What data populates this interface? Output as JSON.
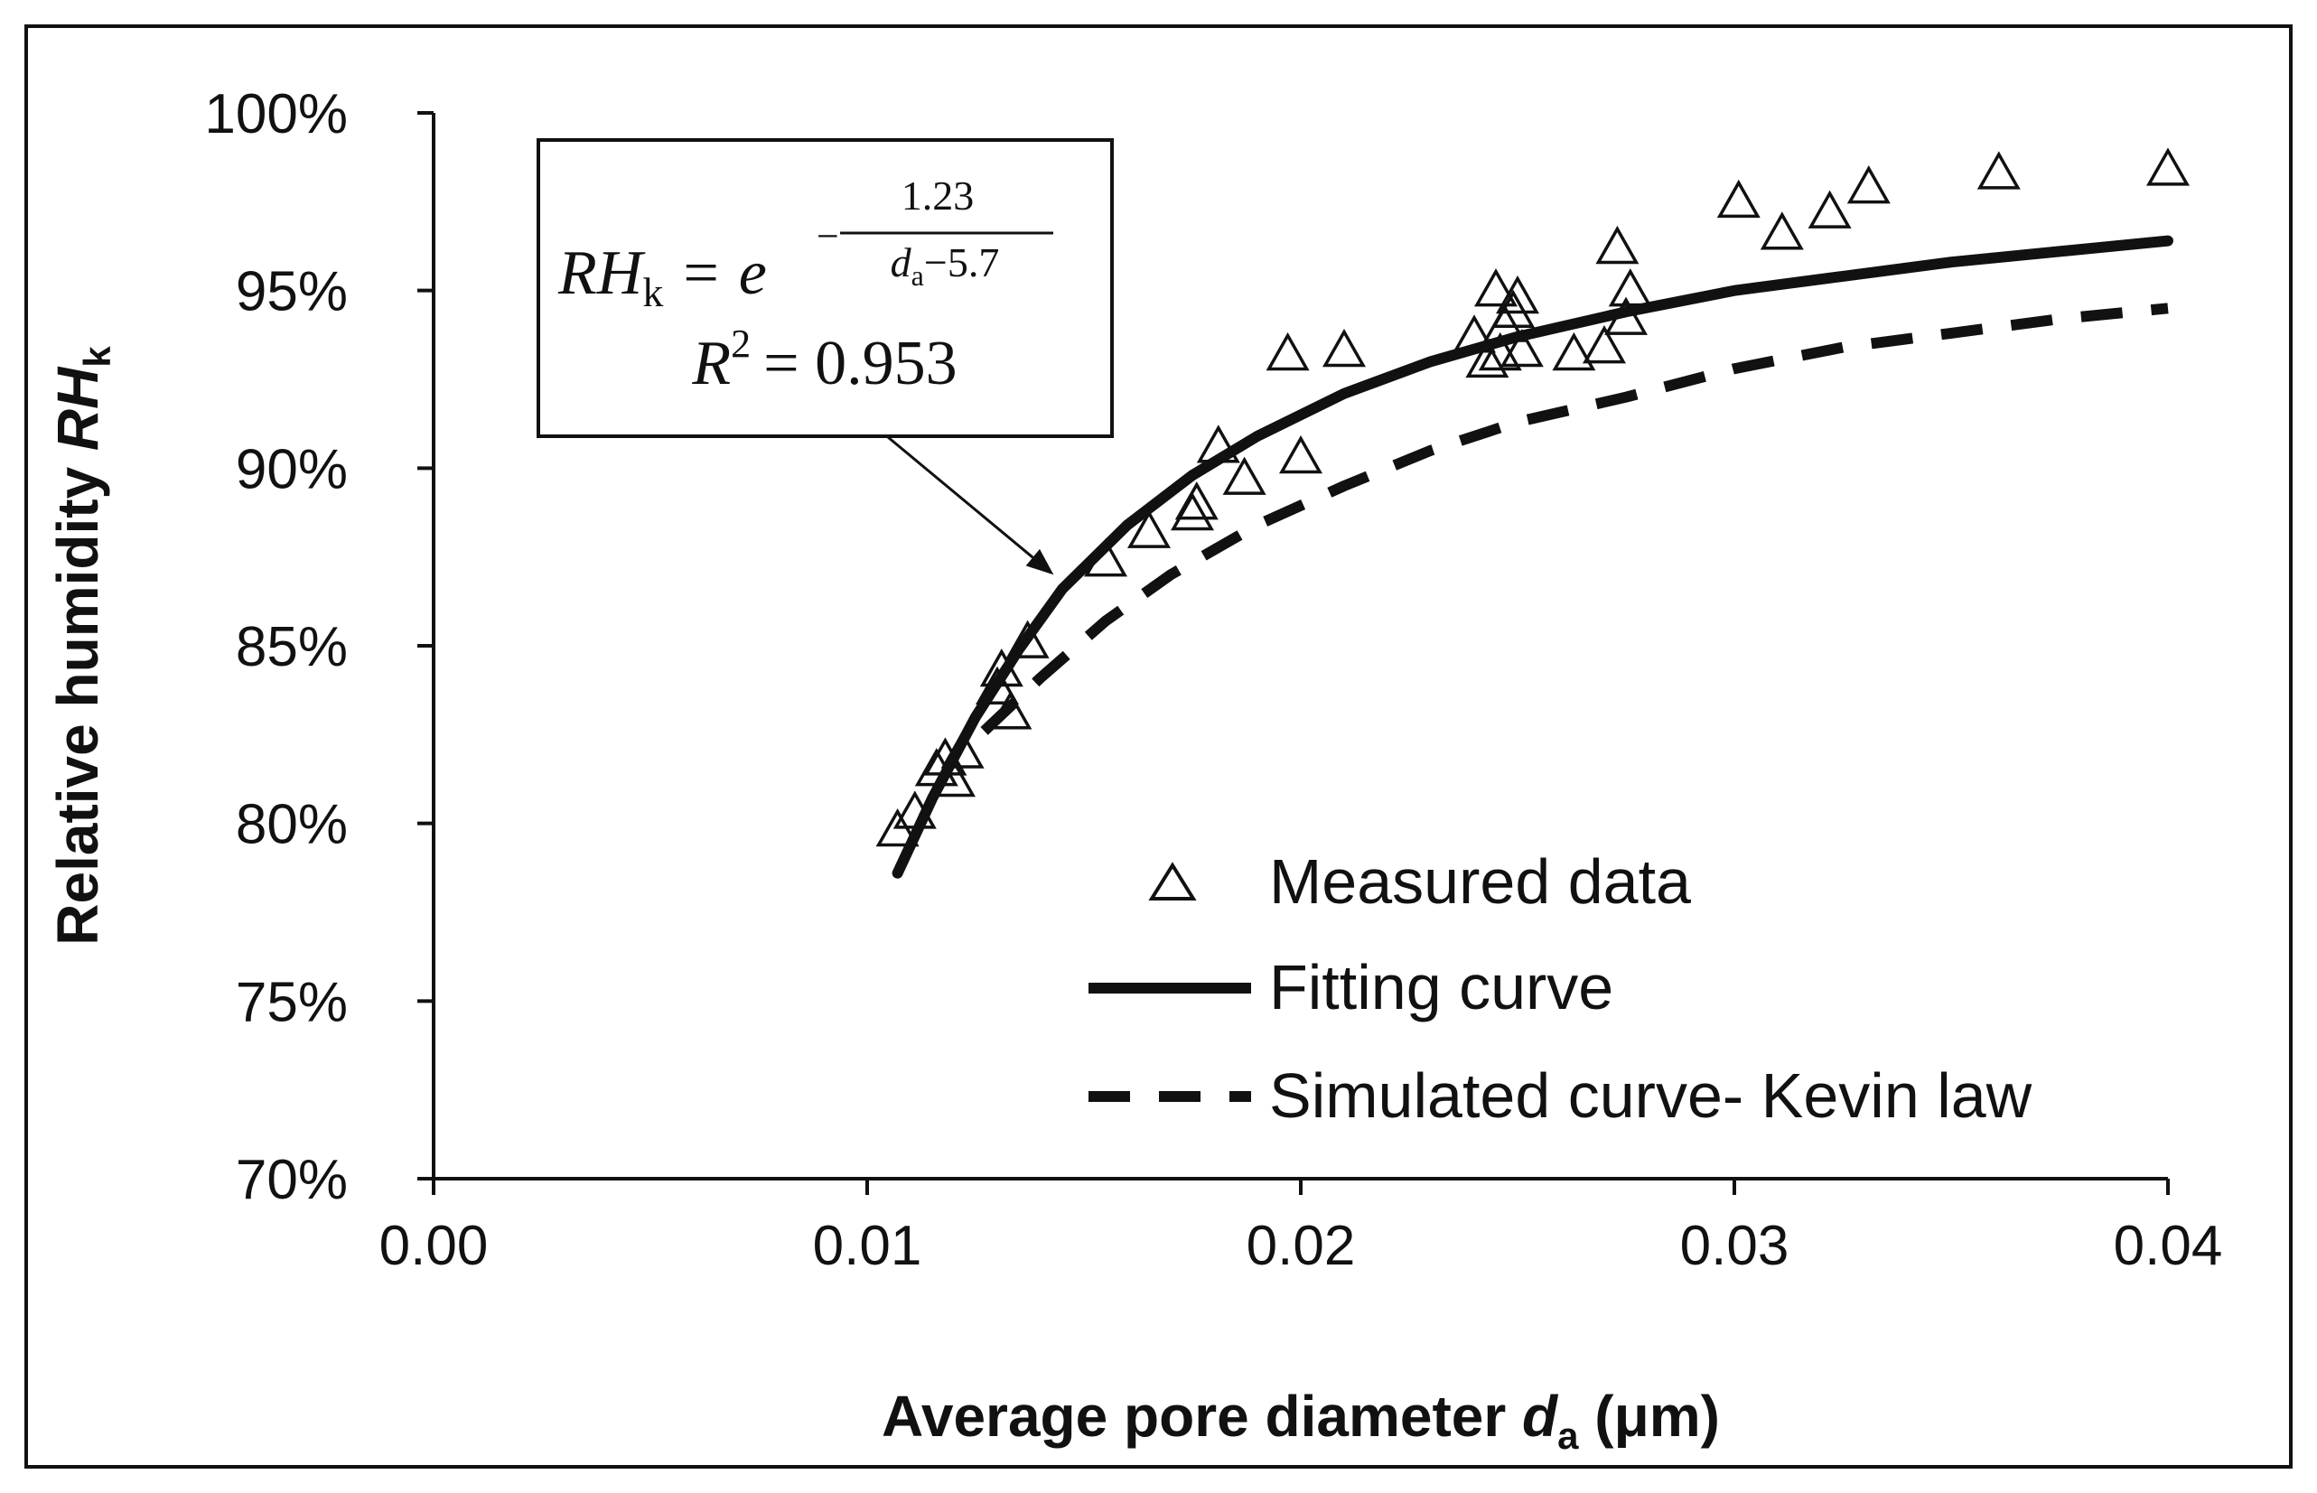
{
  "chart_data": {
    "type": "scatter",
    "xlabel": {
      "main": "Average pore diameter ",
      "var": "d",
      "sub": "a",
      "unit": " (μm)"
    },
    "ylabel": {
      "main": "Relative humidity ",
      "var": "RH",
      "sub": "k"
    },
    "xlim": [
      0,
      0.04
    ],
    "ylim": [
      0.7,
      1.0
    ],
    "xticks": [
      {
        "value": 0.0,
        "label": "0.00"
      },
      {
        "value": 0.01,
        "label": "0.01"
      },
      {
        "value": 0.02,
        "label": "0.02"
      },
      {
        "value": 0.03,
        "label": "0.03"
      },
      {
        "value": 0.04,
        "label": "0.04"
      }
    ],
    "yticks": [
      {
        "value": 0.7,
        "label": "70%"
      },
      {
        "value": 0.75,
        "label": "75%"
      },
      {
        "value": 0.8,
        "label": "80%"
      },
      {
        "value": 0.85,
        "label": "85%"
      },
      {
        "value": 0.9,
        "label": "90%"
      },
      {
        "value": 0.95,
        "label": "95%"
      },
      {
        "value": 1.0,
        "label": "100%"
      }
    ],
    "series": [
      {
        "name": "Measured data",
        "style": "triangle-marker",
        "points": [
          [
            0.0107,
            0.798
          ],
          [
            0.0111,
            0.803
          ],
          [
            0.0116,
            0.815
          ],
          [
            0.0118,
            0.818
          ],
          [
            0.012,
            0.812
          ],
          [
            0.0122,
            0.82
          ],
          [
            0.013,
            0.838
          ],
          [
            0.0131,
            0.843
          ],
          [
            0.0133,
            0.831
          ],
          [
            0.0137,
            0.851
          ],
          [
            0.0155,
            0.874
          ],
          [
            0.0165,
            0.882
          ],
          [
            0.0175,
            0.887
          ],
          [
            0.0176,
            0.89
          ],
          [
            0.0181,
            0.906
          ],
          [
            0.0187,
            0.897
          ],
          [
            0.0197,
            0.932
          ],
          [
            0.02,
            0.903
          ],
          [
            0.021,
            0.933
          ],
          [
            0.024,
            0.937
          ],
          [
            0.0243,
            0.93
          ],
          [
            0.0245,
            0.95
          ],
          [
            0.0246,
            0.932
          ],
          [
            0.0247,
            0.94
          ],
          [
            0.0249,
            0.944
          ],
          [
            0.025,
            0.948
          ],
          [
            0.0251,
            0.933
          ],
          [
            0.0263,
            0.932
          ],
          [
            0.027,
            0.934
          ],
          [
            0.0273,
            0.962
          ],
          [
            0.0275,
            0.942
          ],
          [
            0.0276,
            0.95
          ],
          [
            0.0301,
            0.975
          ],
          [
            0.0311,
            0.966
          ],
          [
            0.0322,
            0.972
          ],
          [
            0.0331,
            0.979
          ],
          [
            0.0361,
            0.983
          ],
          [
            0.04,
            0.984
          ]
        ]
      },
      {
        "name": "Fitting curve",
        "style": "solid",
        "points": [
          [
            0.0107,
            0.786
          ],
          [
            0.0115,
            0.807
          ],
          [
            0.0125,
            0.83
          ],
          [
            0.0135,
            0.849
          ],
          [
            0.0145,
            0.866
          ],
          [
            0.016,
            0.884
          ],
          [
            0.0175,
            0.898
          ],
          [
            0.019,
            0.909
          ],
          [
            0.021,
            0.921
          ],
          [
            0.023,
            0.93
          ],
          [
            0.025,
            0.937
          ],
          [
            0.0275,
            0.944
          ],
          [
            0.03,
            0.95
          ],
          [
            0.0325,
            0.954
          ],
          [
            0.035,
            0.958
          ],
          [
            0.0375,
            0.961
          ],
          [
            0.04,
            0.964
          ]
        ]
      },
      {
        "name": "Simulated curve- Kevin law",
        "style": "dashed",
        "points": [
          [
            0.0127,
            0.826
          ],
          [
            0.014,
            0.841
          ],
          [
            0.0155,
            0.857
          ],
          [
            0.017,
            0.87
          ],
          [
            0.019,
            0.884
          ],
          [
            0.021,
            0.895
          ],
          [
            0.023,
            0.905
          ],
          [
            0.025,
            0.913
          ],
          [
            0.0275,
            0.92
          ],
          [
            0.03,
            0.928
          ],
          [
            0.0325,
            0.934
          ],
          [
            0.035,
            0.938
          ],
          [
            0.0375,
            0.942
          ],
          [
            0.04,
            0.945
          ]
        ]
      }
    ],
    "legend": {
      "placement": "bottom-right",
      "items": [
        "Measured data",
        "Fitting curve",
        "Simulated curve- Kevin law"
      ]
    },
    "annotation": {
      "equation_lhs": "RH",
      "equation_lhs_sub": "k",
      "equals": "=",
      "base": "e",
      "neg_sign": "−",
      "numerator": "1.23",
      "denominator_var": "d",
      "denominator_sub": "a",
      "denominator_rest": "−5.7",
      "r2_lhs": "R",
      "r2_exp": "2",
      "r2_rhs": "= 0.953",
      "arrow_target": [
        0.0143,
        0.87
      ]
    },
    "grid": false
  }
}
